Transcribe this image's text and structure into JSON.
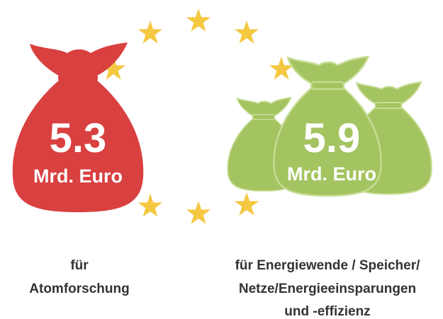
{
  "left": {
    "amount": "5.3",
    "unit": "Mrd. Euro",
    "caption": [
      "für",
      "Atomforschung"
    ]
  },
  "right": {
    "amount": "5.9",
    "unit": "Mrd. Euro",
    "caption": [
      "für Energiewende / Speicher/",
      "Netze/Energieeinsparungen",
      "und -effizienz"
    ]
  }
}
